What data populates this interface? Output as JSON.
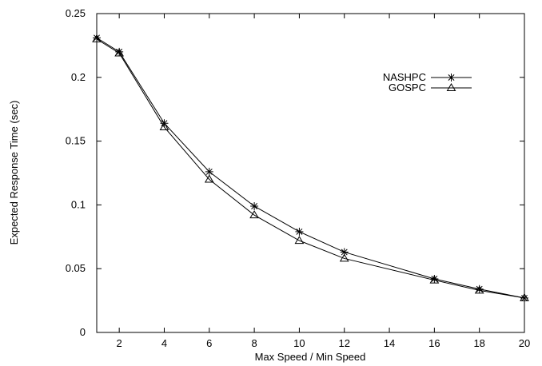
{
  "chart_data": {
    "type": "line",
    "xlabel": "Max Speed / Min Speed",
    "ylabel": "Expected Response Time (sec)",
    "xlim": [
      1,
      20
    ],
    "ylim": [
      0,
      0.25
    ],
    "x_ticks": [
      2,
      4,
      6,
      8,
      10,
      12,
      14,
      16,
      18,
      20
    ],
    "y_ticks": [
      0,
      0.05,
      0.1,
      0.15,
      0.2,
      0.25
    ],
    "y_tick_labels": [
      "0",
      "0.05",
      "0.1",
      "0.15",
      "0.2",
      "0.25"
    ],
    "grid": false,
    "legend_position": "top-right",
    "series": [
      {
        "name": "NASHPC",
        "marker": "asterisk",
        "x": [
          1,
          2,
          4,
          6,
          8,
          10,
          12,
          16,
          18,
          20
        ],
        "values": [
          0.231,
          0.22,
          0.164,
          0.126,
          0.099,
          0.079,
          0.063,
          0.042,
          0.034,
          0.027
        ]
      },
      {
        "name": "GOSPC",
        "marker": "triangle",
        "x": [
          1,
          2,
          4,
          6,
          8,
          10,
          12,
          16,
          18,
          20
        ],
        "values": [
          0.23,
          0.219,
          0.161,
          0.12,
          0.092,
          0.072,
          0.058,
          0.041,
          0.033,
          0.027
        ]
      }
    ]
  }
}
